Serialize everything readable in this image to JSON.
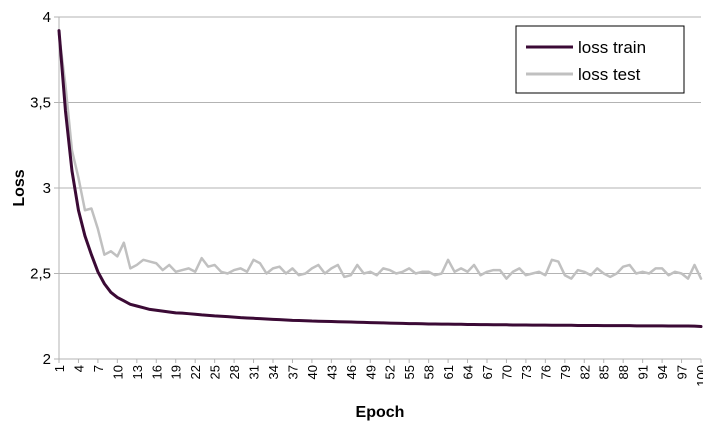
{
  "chart_data": {
    "type": "line",
    "xlabel": "Epoch",
    "ylabel": "Loss",
    "ylim": [
      2,
      4
    ],
    "yticks": [
      2,
      2.5,
      3,
      3.5,
      4
    ],
    "ytick_labels": [
      "2",
      "2,5",
      "3",
      "3,5",
      "4"
    ],
    "xlim": [
      1,
      100
    ],
    "xticks": [
      1,
      4,
      7,
      10,
      13,
      16,
      19,
      22,
      25,
      28,
      31,
      34,
      37,
      40,
      43,
      46,
      49,
      52,
      55,
      58,
      61,
      64,
      67,
      70,
      73,
      76,
      79,
      82,
      85,
      88,
      91,
      94,
      97,
      100
    ],
    "grid": "horizontal",
    "legend_position": "top-right",
    "series": [
      {
        "name": "loss train",
        "color": "#3b0a35",
        "values": [
          3.92,
          3.45,
          3.1,
          2.87,
          2.72,
          2.61,
          2.51,
          2.44,
          2.39,
          2.36,
          2.34,
          2.32,
          2.31,
          2.3,
          2.29,
          2.285,
          2.28,
          2.275,
          2.27,
          2.268,
          2.265,
          2.262,
          2.258,
          2.255,
          2.252,
          2.25,
          2.248,
          2.245,
          2.242,
          2.24,
          2.238,
          2.236,
          2.234,
          2.232,
          2.23,
          2.228,
          2.226,
          2.225,
          2.224,
          2.222,
          2.221,
          2.22,
          2.219,
          2.218,
          2.217,
          2.216,
          2.215,
          2.214,
          2.213,
          2.212,
          2.211,
          2.21,
          2.209,
          2.208,
          2.207,
          2.207,
          2.206,
          2.205,
          2.205,
          2.204,
          2.204,
          2.203,
          2.203,
          2.202,
          2.202,
          2.201,
          2.201,
          2.2,
          2.2,
          2.2,
          2.199,
          2.199,
          2.199,
          2.198,
          2.198,
          2.198,
          2.197,
          2.197,
          2.197,
          2.197,
          2.196,
          2.196,
          2.196,
          2.196,
          2.195,
          2.195,
          2.195,
          2.195,
          2.195,
          2.194,
          2.194,
          2.194,
          2.194,
          2.194,
          2.193,
          2.193,
          2.193,
          2.193,
          2.192,
          2.19
        ]
      },
      {
        "name": "loss test",
        "color": "#c0c0c0",
        "values": [
          3.9,
          3.6,
          3.22,
          3.06,
          2.87,
          2.88,
          2.76,
          2.61,
          2.63,
          2.6,
          2.68,
          2.53,
          2.55,
          2.58,
          2.57,
          2.56,
          2.52,
          2.55,
          2.51,
          2.52,
          2.53,
          2.51,
          2.59,
          2.54,
          2.55,
          2.51,
          2.5,
          2.52,
          2.53,
          2.51,
          2.58,
          2.56,
          2.5,
          2.53,
          2.54,
          2.5,
          2.53,
          2.49,
          2.5,
          2.53,
          2.55,
          2.5,
          2.53,
          2.55,
          2.48,
          2.49,
          2.55,
          2.5,
          2.51,
          2.49,
          2.53,
          2.52,
          2.5,
          2.51,
          2.53,
          2.5,
          2.51,
          2.51,
          2.49,
          2.5,
          2.58,
          2.51,
          2.53,
          2.51,
          2.55,
          2.49,
          2.51,
          2.52,
          2.52,
          2.47,
          2.51,
          2.53,
          2.49,
          2.5,
          2.51,
          2.49,
          2.58,
          2.57,
          2.49,
          2.47,
          2.52,
          2.51,
          2.49,
          2.53,
          2.5,
          2.48,
          2.5,
          2.54,
          2.55,
          2.5,
          2.51,
          2.5,
          2.53,
          2.53,
          2.49,
          2.51,
          2.5,
          2.47,
          2.55,
          2.47
        ]
      }
    ]
  }
}
